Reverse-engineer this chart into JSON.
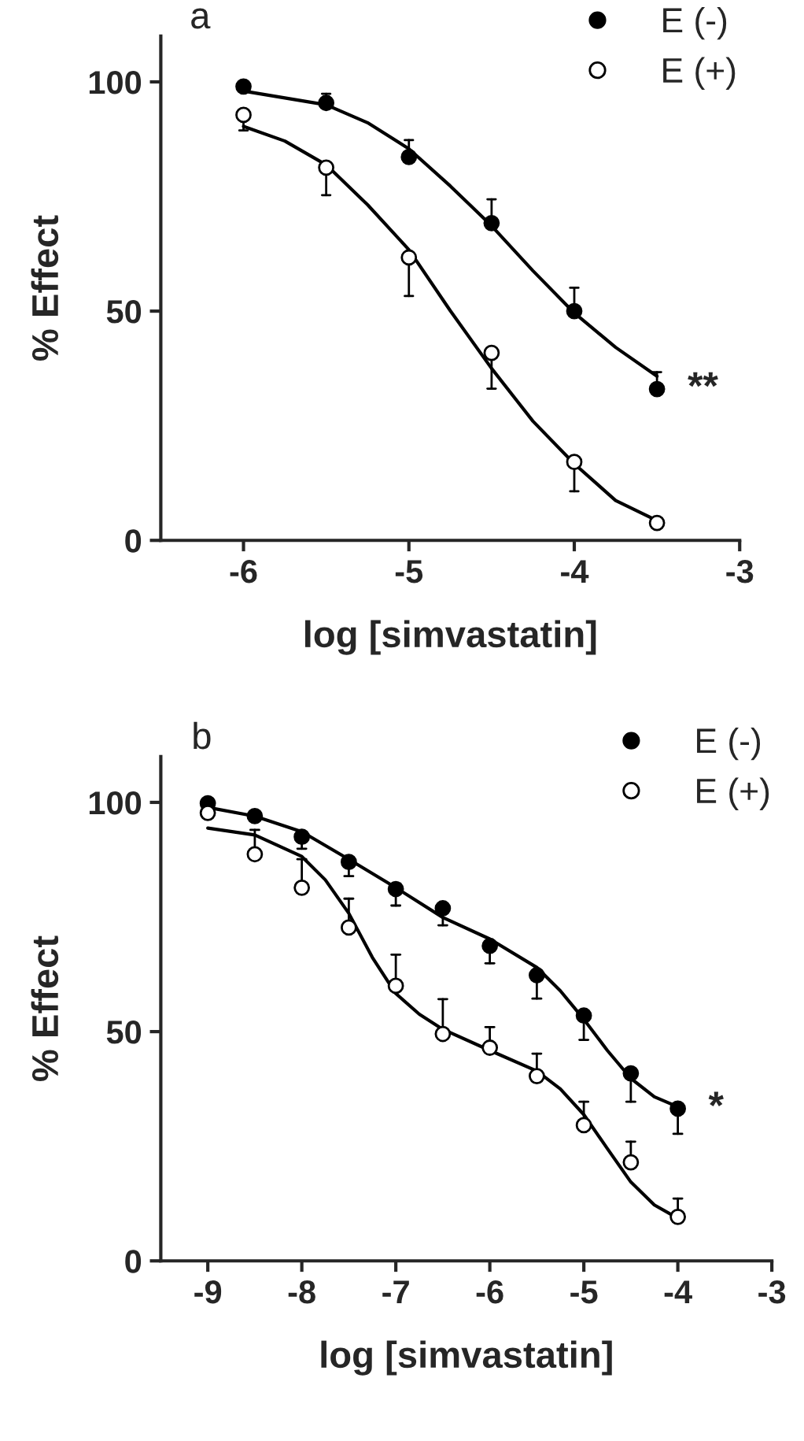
{
  "chart_data": [
    {
      "type": "line",
      "title": "a",
      "xlabel": "log [simvastatin]",
      "ylabel": "% Effect",
      "xlim": [
        -6.5,
        -3
      ],
      "ylim": [
        0,
        110
      ],
      "xticks": [
        -6,
        -5,
        -4,
        -3
      ],
      "yticks": [
        0,
        50,
        100
      ],
      "grid": false,
      "legend": "top right",
      "annotations": [
        {
          "text": "**",
          "x": -3.5,
          "y": 33
        }
      ],
      "series": [
        {
          "type": "scatter",
          "name": "E (-)",
          "color": "#000000",
          "marker": "circle",
          "x": [
            -6,
            -5.5,
            -5,
            -4.5,
            -4,
            -3.5
          ],
          "values": [
            99,
            95.4,
            83.6,
            69.2,
            50,
            33
          ],
          "errors": [
            null,
            [
              95.4,
              97.4
            ],
            [
              83.6,
              87.3
            ],
            [
              69.2,
              74.4
            ],
            [
              50,
              55.1
            ],
            [
              33,
              36.7
            ]
          ]
        },
        {
          "type": "scatter",
          "name": "E (+)",
          "color": "#ffffff",
          "marker": "circle",
          "x": [
            -6,
            -5.5,
            -5,
            -4.5,
            -4,
            -3.5
          ],
          "values": [
            92.8,
            81.3,
            61.7,
            40.9,
            17.1,
            3.8
          ],
          "errors": [
            [
              89.4,
              92.8
            ],
            [
              75.3,
              81.3
            ],
            [
              53.3,
              61.7
            ],
            [
              33.1,
              40.9
            ],
            [
              10.7,
              17.1
            ],
            null
          ]
        },
        {
          "color": "#000000",
          "marker": "none",
          "x": [
            -6,
            -5.5,
            -5.25,
            -5,
            -4.75,
            -4.5,
            -4.25,
            -4,
            -3.75,
            -3.5
          ],
          "values": [
            98,
            95,
            91.1,
            85.4,
            77.3,
            68.6,
            58.8,
            49.6,
            42.1,
            35.8
          ]
        },
        {
          "color": "#000000",
          "marker": "none",
          "x": [
            -6,
            -5.75,
            -5.5,
            -5.25,
            -5,
            -4.75,
            -4.5,
            -4.25,
            -4,
            -3.75,
            -3.5
          ],
          "values": [
            90.3,
            87.1,
            81.9,
            73.2,
            63.4,
            50.1,
            37.5,
            26,
            16.7,
            8.7,
            4.3
          ]
        }
      ]
    },
    {
      "type": "line",
      "title": "b",
      "xlabel": "log [simvastatin]",
      "ylabel": "% Effect",
      "xlim": [
        -9.5,
        -3
      ],
      "ylim": [
        0,
        110
      ],
      "xticks": [
        -9,
        -8,
        -7,
        -6,
        -5,
        -4,
        -3
      ],
      "yticks": [
        0,
        50,
        100
      ],
      "grid": false,
      "legend": "top right",
      "annotations": [
        {
          "text": "*",
          "x": -4,
          "y": 33.2
        }
      ],
      "series": [
        {
          "type": "scatter",
          "name": "E (-)",
          "color": "#000000",
          "marker": "circle",
          "x": [
            -9,
            -8.5,
            -8,
            -7.5,
            -7,
            -6.5,
            -6,
            -5.5,
            -5,
            -4.5,
            -4
          ],
          "values": [
            99.8,
            97,
            92.5,
            87,
            81.1,
            76.9,
            68.7,
            62.3,
            53.5,
            40.9,
            33.2
          ],
          "errors": [
            null,
            null,
            [
              89.9,
              92.5
            ],
            [
              83.9,
              87
            ],
            [
              77.5,
              81.1
            ],
            [
              73.2,
              76.9
            ],
            [
              64.9,
              68.7
            ],
            [
              57.2,
              62.3
            ],
            [
              48.2,
              53.5
            ],
            [
              34.7,
              40.9
            ],
            [
              27.7,
              33.2
            ]
          ]
        },
        {
          "type": "scatter",
          "name": "E (+)",
          "color": "#ffffff",
          "marker": "circle",
          "x": [
            -9,
            -8.5,
            -8,
            -7.5,
            -7,
            -6.5,
            -6,
            -5.5,
            -5,
            -4.5,
            -4
          ],
          "values": [
            97.7,
            88.7,
            81.4,
            72.7,
            60,
            49.5,
            46.5,
            40.3,
            29.6,
            21.5,
            9.6
          ],
          "errors": [
            null,
            [
              88.7,
              94
            ],
            [
              81.4,
              87.6
            ],
            [
              72.7,
              79
            ],
            [
              60,
              66.8
            ],
            [
              49.5,
              57.1
            ],
            [
              46.5,
              51
            ],
            [
              40.3,
              45.2
            ],
            [
              29.6,
              34.7
            ],
            [
              21.5,
              26
            ],
            [
              9.6,
              13.6
            ]
          ]
        },
        {
          "color": "#000000",
          "marker": "none",
          "x": [
            -9,
            -8.5,
            -8,
            -7.5,
            -7,
            -6.5,
            -6,
            -5.5,
            -5.25,
            -5,
            -4.75,
            -4.5,
            -4.25,
            -4
          ],
          "values": [
            98.9,
            97,
            93.6,
            87.6,
            81.4,
            74.9,
            70.2,
            64,
            58.9,
            52.7,
            45.9,
            39.8,
            35.8,
            33.6
          ]
        },
        {
          "color": "#000000",
          "marker": "none",
          "x": [
            -9,
            -8.5,
            -8,
            -7.75,
            -7.5,
            -7.25,
            -7,
            -6.75,
            -6.5,
            -6,
            -5.5,
            -5.25,
            -5,
            -4.75,
            -4.5,
            -4.25,
            -4
          ],
          "values": [
            94.4,
            92.9,
            88.2,
            83.1,
            75.8,
            66.2,
            58.3,
            53.8,
            50.5,
            45.9,
            41.4,
            37.5,
            31.9,
            24.5,
            17.2,
            12.2,
            9.3
          ]
        }
      ]
    }
  ]
}
